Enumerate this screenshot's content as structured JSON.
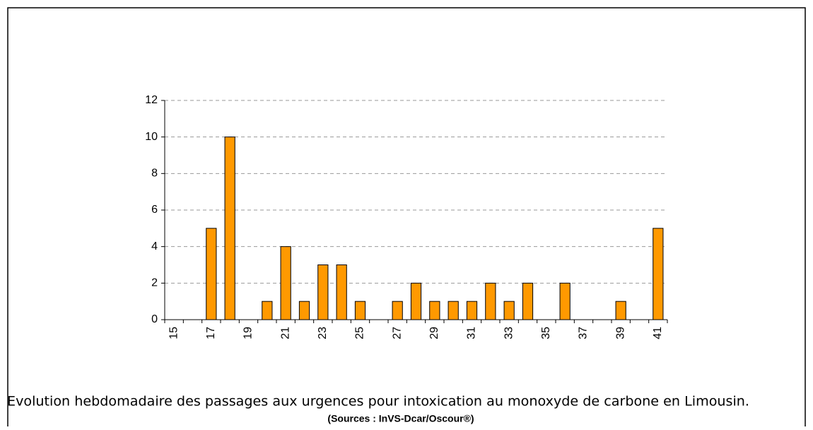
{
  "chart_data": {
    "type": "bar",
    "categories": [
      "15",
      null,
      "17",
      null,
      "19",
      null,
      "21",
      null,
      "23",
      null,
      "25",
      null,
      "27",
      null,
      "29",
      null,
      "31",
      null,
      "33",
      null,
      "35",
      null,
      "37",
      null,
      "39",
      null,
      "41"
    ],
    "values": [
      0,
      0,
      5,
      10,
      0,
      1,
      4,
      1,
      3,
      3,
      1,
      0,
      1,
      2,
      1,
      1,
      1,
      2,
      1,
      2,
      0,
      2,
      0,
      0,
      1,
      0,
      5
    ],
    "color": "#ff9900",
    "ylim": [
      0,
      12
    ],
    "yticks": [
      0,
      2,
      4,
      6,
      8,
      10,
      12
    ],
    "grid": true,
    "caption": "Evolution hebdomadaire des passages aux urgences pour intoxication au monoxyde de carbone en Limousin.",
    "source": "(Sources : InVS-Dcar/Oscour®)"
  }
}
